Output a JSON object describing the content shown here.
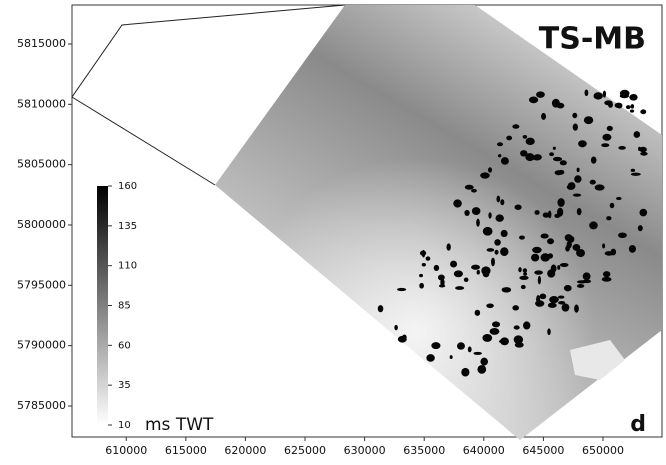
{
  "chart_data": {
    "type": "map",
    "title": "TS-MB",
    "annotation": "d",
    "xlim": [
      605450,
      654950
    ],
    "ylim": [
      5782430,
      5818230
    ],
    "xticks": [
      610000,
      615000,
      620000,
      625000,
      630000,
      635000,
      640000,
      645000,
      650000
    ],
    "yticks": [
      5785000,
      5790000,
      5795000,
      5800000,
      5805000,
      5810000,
      5815000
    ],
    "colorbar": {
      "label": "ms TWT",
      "lim": [
        10,
        160
      ],
      "ticks": [
        10,
        35,
        60,
        85,
        110,
        135,
        160
      ]
    }
  }
}
